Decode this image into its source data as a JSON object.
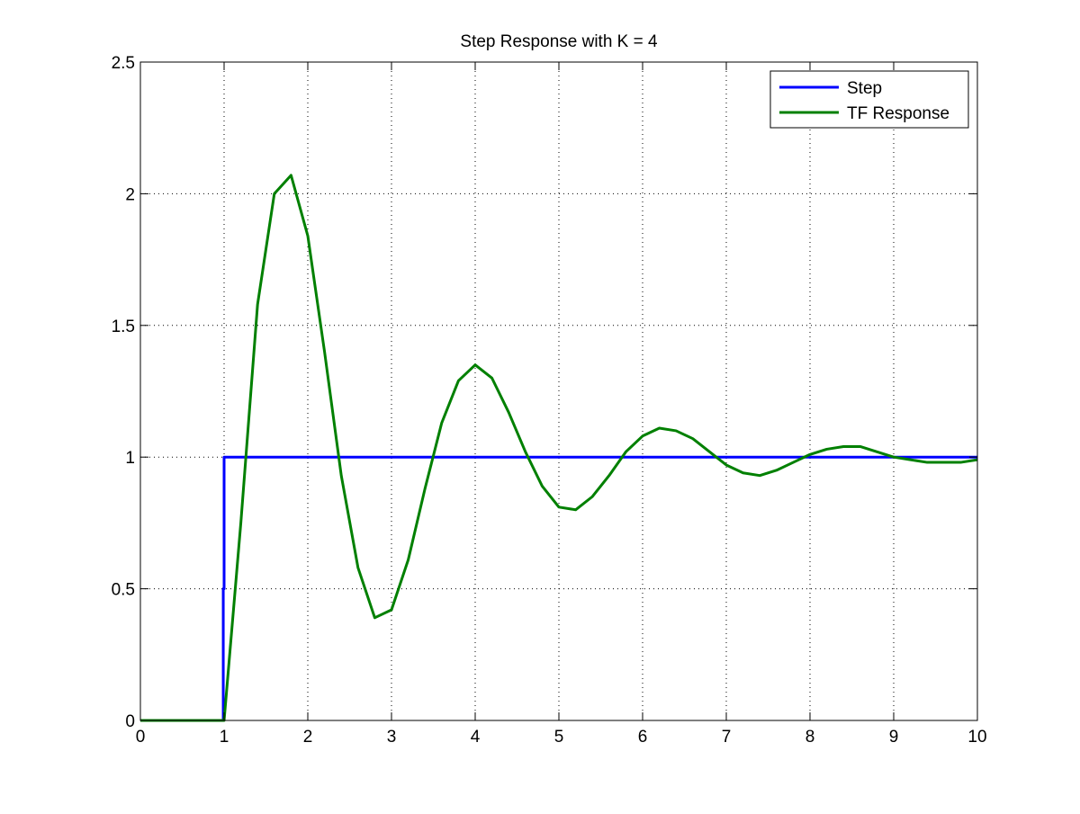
{
  "chart_data": {
    "type": "line",
    "title": "Step Response with K = 4",
    "xlabel": "",
    "ylabel": "",
    "xlim": [
      0,
      10
    ],
    "ylim": [
      0,
      2.5
    ],
    "x_ticks": [
      "0",
      "1",
      "2",
      "3",
      "4",
      "5",
      "6",
      "7",
      "8",
      "9",
      "10"
    ],
    "y_ticks": [
      "0",
      "0.5",
      "1",
      "1.5",
      "2",
      "2.5"
    ],
    "x_tick_values": [
      0,
      1,
      2,
      3,
      4,
      5,
      6,
      7,
      8,
      9,
      10
    ],
    "y_tick_values": [
      0,
      0.5,
      1,
      1.5,
      2,
      2.5
    ],
    "grid": true,
    "legend_position": "top-right",
    "series": [
      {
        "name": "Step",
        "color": "#0000ff",
        "points": [
          [
            0,
            0
          ],
          [
            0.99,
            0
          ],
          [
            0.99,
            0.5
          ],
          [
            1.0,
            0.5
          ],
          [
            1.0,
            1
          ],
          [
            10,
            1
          ]
        ]
      },
      {
        "name": "TF Response",
        "color": "#008000",
        "points": [
          [
            0,
            0
          ],
          [
            1.0,
            0
          ],
          [
            1.2,
            0.75
          ],
          [
            1.4,
            1.58
          ],
          [
            1.6,
            2.0
          ],
          [
            1.8,
            2.07
          ],
          [
            2.0,
            1.84
          ],
          [
            2.2,
            1.4
          ],
          [
            2.4,
            0.93
          ],
          [
            2.6,
            0.58
          ],
          [
            2.8,
            0.39
          ],
          [
            3.0,
            0.42
          ],
          [
            3.2,
            0.61
          ],
          [
            3.4,
            0.88
          ],
          [
            3.6,
            1.13
          ],
          [
            3.8,
            1.29
          ],
          [
            4.0,
            1.35
          ],
          [
            4.2,
            1.3
          ],
          [
            4.4,
            1.17
          ],
          [
            4.6,
            1.02
          ],
          [
            4.8,
            0.89
          ],
          [
            5.0,
            0.81
          ],
          [
            5.2,
            0.8
          ],
          [
            5.4,
            0.85
          ],
          [
            5.6,
            0.93
          ],
          [
            5.8,
            1.02
          ],
          [
            6.0,
            1.08
          ],
          [
            6.2,
            1.11
          ],
          [
            6.4,
            1.1
          ],
          [
            6.6,
            1.07
          ],
          [
            6.8,
            1.02
          ],
          [
            7.0,
            0.97
          ],
          [
            7.2,
            0.94
          ],
          [
            7.4,
            0.93
          ],
          [
            7.6,
            0.95
          ],
          [
            7.8,
            0.98
          ],
          [
            8.0,
            1.01
          ],
          [
            8.2,
            1.03
          ],
          [
            8.4,
            1.04
          ],
          [
            8.6,
            1.04
          ],
          [
            8.8,
            1.02
          ],
          [
            9.0,
            1.0
          ],
          [
            9.2,
            0.99
          ],
          [
            9.4,
            0.98
          ],
          [
            9.6,
            0.98
          ],
          [
            9.8,
            0.98
          ],
          [
            10.0,
            0.99
          ]
        ]
      }
    ]
  }
}
